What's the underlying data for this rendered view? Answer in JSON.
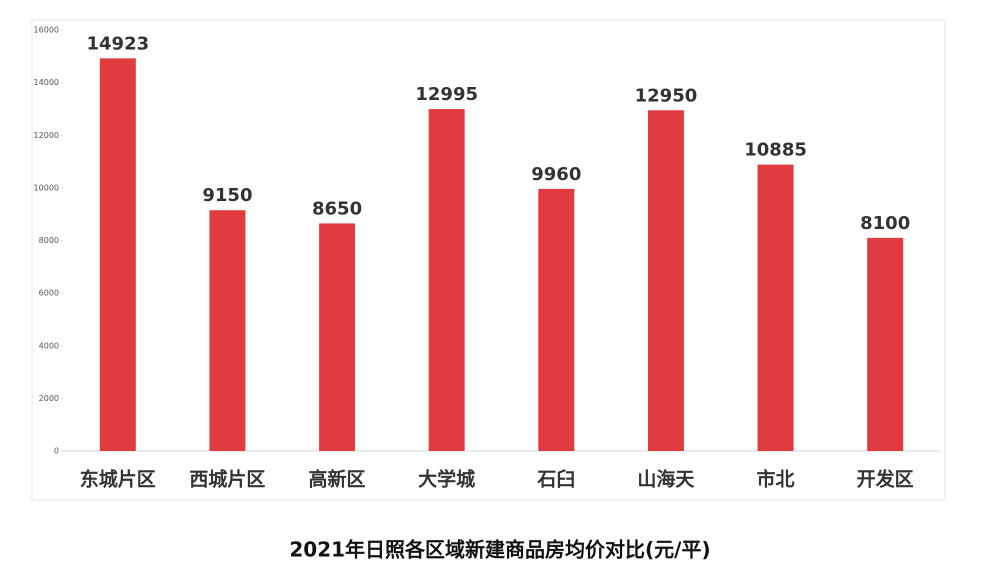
{
  "chart_data": {
    "type": "bar",
    "title": "2021年日照各区域新建商品房均价对比(元/平)",
    "categories": [
      "东城片区",
      "西城片区",
      "高新区",
      "大学城",
      "石臼",
      "山海天",
      "市北",
      "开发区"
    ],
    "values": [
      14923,
      9150,
      8650,
      12995,
      9960,
      12950,
      10885,
      8100
    ],
    "color": "#e03c3f",
    "ylim": [
      0,
      16000
    ],
    "yticks": [
      0,
      2000,
      4000,
      6000,
      8000,
      10000,
      12000,
      14000,
      16000
    ]
  }
}
